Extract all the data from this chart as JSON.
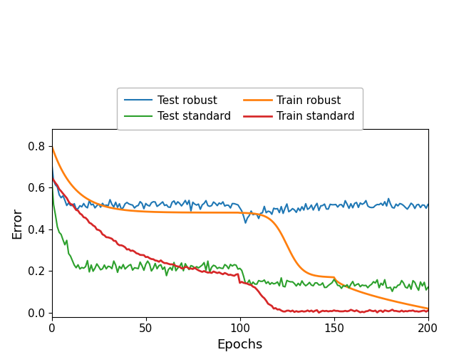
{
  "title": "",
  "xlabel": "Epochs",
  "ylabel": "Error",
  "xlim": [
    0,
    200
  ],
  "ylim": [
    -0.02,
    0.88
  ],
  "yticks": [
    0.0,
    0.2,
    0.4,
    0.6,
    0.8
  ],
  "xticks": [
    0,
    50,
    100,
    150,
    200
  ],
  "colors": {
    "test_robust": "#1f77b4",
    "train_robust": "#ff7f0e",
    "test_standard": "#2ca02c",
    "train_standard": "#d62728"
  },
  "seed": 42,
  "n_epochs": 200,
  "linewidth": 1.5
}
